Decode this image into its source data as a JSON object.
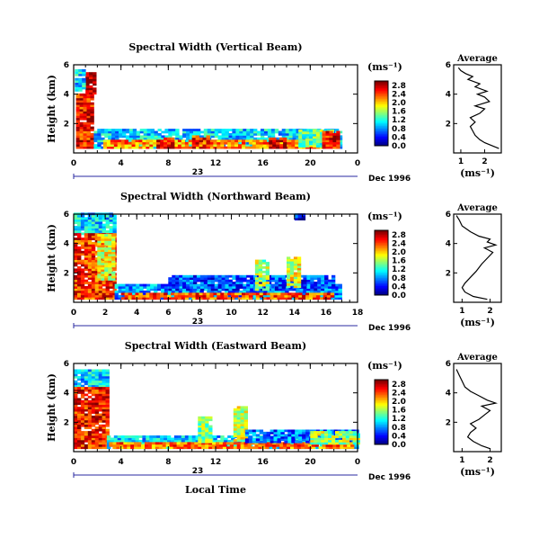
{
  "figure": {
    "bottom_label": "Local Time",
    "date_label": "Dec 1996",
    "day_label": "23"
  },
  "chart_data": [
    {
      "type": "heatmap",
      "title": "Spectral Width (Vertical Beam)",
      "xlabel": "",
      "ylabel": "Height (km)",
      "x_ticks": [
        "0",
        "4",
        "8",
        "12",
        "16",
        "20",
        "0"
      ],
      "x_range": [
        0,
        24
      ],
      "y_ticks": [
        "2",
        "4",
        "6"
      ],
      "y_range": [
        0,
        6
      ],
      "colorbar": {
        "unit": "(ms⁻¹)",
        "ticks": [
          "0.0",
          "0.4",
          "0.8",
          "1.2",
          "1.6",
          "2.0",
          "2.4",
          "2.8"
        ],
        "range": [
          0,
          3
        ]
      },
      "blobs": [
        {
          "x0": 0.2,
          "x1": 1.7,
          "y0": 0.3,
          "y1": 4.0,
          "v": 2.6
        },
        {
          "x0": 1.0,
          "x1": 1.7,
          "y0": 4.0,
          "y1": 5.5,
          "v": 2.9
        },
        {
          "x0": 0.1,
          "x1": 0.9,
          "y0": 4.2,
          "y1": 5.6,
          "v": 1.0
        },
        {
          "x0": 1.7,
          "x1": 22.5,
          "y0": 0.3,
          "y1": 1.6,
          "v": 1.0
        },
        {
          "x0": 2.5,
          "x1": 22.0,
          "y0": 0.3,
          "y1": 0.8,
          "v": 2.2
        },
        {
          "x0": 7.0,
          "x1": 8.5,
          "y0": 0.3,
          "y1": 1.0,
          "v": 2.7
        },
        {
          "x0": 10.0,
          "x1": 11.5,
          "y0": 0.3,
          "y1": 1.2,
          "v": 2.5
        },
        {
          "x0": 16.5,
          "x1": 18.0,
          "y0": 0.3,
          "y1": 1.0,
          "v": 2.8
        },
        {
          "x0": 19.0,
          "x1": 22.0,
          "y0": 0.4,
          "y1": 1.6,
          "v": 1.4
        },
        {
          "x0": 21.0,
          "x1": 22.5,
          "y0": 0.3,
          "y1": 1.5,
          "v": 2.6
        }
      ],
      "profile": {
        "title": "Average",
        "xlabel": "(ms⁻¹)",
        "x_ticks": [
          "1",
          "2"
        ],
        "x_range": [
          0.7,
          2.7
        ],
        "y_ticks": [
          "2",
          "4",
          "6"
        ],
        "y_range": [
          0,
          6
        ],
        "points": [
          [
            2.6,
            0.3
          ],
          [
            2.3,
            0.5
          ],
          [
            2.0,
            0.7
          ],
          [
            1.8,
            0.9
          ],
          [
            1.6,
            1.2
          ],
          [
            1.5,
            1.5
          ],
          [
            1.4,
            1.8
          ],
          [
            1.6,
            2.1
          ],
          [
            1.4,
            2.4
          ],
          [
            1.8,
            2.7
          ],
          [
            2.0,
            3.0
          ],
          [
            1.6,
            3.2
          ],
          [
            2.2,
            3.5
          ],
          [
            2.0,
            3.8
          ],
          [
            1.7,
            4.0
          ],
          [
            2.1,
            4.2
          ],
          [
            1.6,
            4.5
          ],
          [
            1.8,
            4.7
          ],
          [
            1.3,
            5.0
          ],
          [
            1.5,
            5.2
          ],
          [
            1.2,
            5.4
          ],
          [
            1.0,
            5.6
          ],
          [
            0.9,
            5.8
          ]
        ]
      }
    },
    {
      "type": "heatmap",
      "title": "Spectral Width (Northward Beam)",
      "xlabel": "",
      "ylabel": "Height (km)",
      "x_ticks": [
        "0",
        "2",
        "4",
        "6",
        "8",
        "10",
        "12",
        "14",
        "16",
        "18"
      ],
      "x_range": [
        0,
        18
      ],
      "y_ticks": [
        "2",
        "4",
        "6"
      ],
      "y_range": [
        0,
        6
      ],
      "colorbar": {
        "unit": "(ms⁻¹)",
        "ticks": [
          "0.0",
          "0.4",
          "0.8",
          "1.2",
          "1.6",
          "2.0",
          "2.4",
          "2.8"
        ],
        "range": [
          0,
          3
        ]
      },
      "blobs": [
        {
          "x0": 0.0,
          "x1": 2.6,
          "y0": 4.6,
          "y1": 6.0,
          "v": 1.0
        },
        {
          "x0": 0.0,
          "x1": 2.6,
          "y0": 0.2,
          "y1": 4.6,
          "v": 2.5
        },
        {
          "x0": 1.5,
          "x1": 2.6,
          "y0": 1.5,
          "y1": 4.6,
          "v": 1.8
        },
        {
          "x0": 2.6,
          "x1": 16.8,
          "y0": 0.2,
          "y1": 1.2,
          "v": 0.8
        },
        {
          "x0": 3.0,
          "x1": 16.5,
          "y0": 0.2,
          "y1": 0.6,
          "v": 2.4
        },
        {
          "x0": 6.0,
          "x1": 16.5,
          "y0": 0.8,
          "y1": 1.8,
          "v": 0.6
        },
        {
          "x0": 11.5,
          "x1": 12.2,
          "y0": 0.8,
          "y1": 2.8,
          "v": 1.6
        },
        {
          "x0": 13.5,
          "x1": 14.3,
          "y0": 1.0,
          "y1": 3.0,
          "v": 1.8
        },
        {
          "x0": 14.0,
          "x1": 14.5,
          "y0": 5.6,
          "y1": 6.0,
          "v": 0.4
        }
      ],
      "profile": {
        "title": "Average",
        "xlabel": "(ms⁻¹)",
        "x_ticks": [
          "1",
          "2"
        ],
        "x_range": [
          0.7,
          2.4
        ],
        "y_ticks": [
          "2",
          "4",
          "6"
        ],
        "y_range": [
          0,
          6
        ],
        "points": [
          [
            1.9,
            0.2
          ],
          [
            1.4,
            0.4
          ],
          [
            1.1,
            0.7
          ],
          [
            1.0,
            1.0
          ],
          [
            1.1,
            1.3
          ],
          [
            1.3,
            1.7
          ],
          [
            1.5,
            2.1
          ],
          [
            1.7,
            2.6
          ],
          [
            1.9,
            3.0
          ],
          [
            2.1,
            3.4
          ],
          [
            1.8,
            3.7
          ],
          [
            2.2,
            3.9
          ],
          [
            1.9,
            4.1
          ],
          [
            2.0,
            4.3
          ],
          [
            1.6,
            4.5
          ],
          [
            1.3,
            4.8
          ],
          [
            1.0,
            5.2
          ],
          [
            0.9,
            5.6
          ],
          [
            0.8,
            5.9
          ]
        ]
      }
    },
    {
      "type": "heatmap",
      "title": "Spectral Width (Eastward Beam)",
      "xlabel": "Local Time",
      "ylabel": "Height (km)",
      "x_ticks": [
        "0",
        "4",
        "8",
        "12",
        "16",
        "20",
        "0"
      ],
      "x_range": [
        0,
        24
      ],
      "y_ticks": [
        "2",
        "4",
        "6"
      ],
      "y_range": [
        0,
        6
      ],
      "colorbar": {
        "unit": "(ms⁻¹)",
        "ticks": [
          "0.0",
          "0.4",
          "0.8",
          "1.2",
          "1.6",
          "2.0",
          "2.4",
          "2.8"
        ],
        "range": [
          0,
          3
        ]
      },
      "blobs": [
        {
          "x0": 0.0,
          "x1": 3.0,
          "y0": 4.4,
          "y1": 5.6,
          "v": 1.0
        },
        {
          "x0": 0.0,
          "x1": 2.8,
          "y0": 0.2,
          "y1": 4.4,
          "v": 2.6
        },
        {
          "x0": 2.8,
          "x1": 24.0,
          "y0": 0.2,
          "y1": 1.0,
          "v": 1.0
        },
        {
          "x0": 3.0,
          "x1": 23.5,
          "y0": 0.2,
          "y1": 0.6,
          "v": 2.3
        },
        {
          "x0": 10.5,
          "x1": 11.5,
          "y0": 0.6,
          "y1": 2.4,
          "v": 1.5
        },
        {
          "x0": 13.5,
          "x1": 14.5,
          "y0": 0.7,
          "y1": 3.0,
          "v": 1.7
        },
        {
          "x0": 14.5,
          "x1": 24.0,
          "y0": 0.6,
          "y1": 1.4,
          "v": 0.7
        },
        {
          "x0": 20.0,
          "x1": 24.0,
          "y0": 0.5,
          "y1": 1.3,
          "v": 1.6
        }
      ],
      "profile": {
        "title": "Average",
        "xlabel": "(ms⁻¹)",
        "x_ticks": [
          "1",
          "2"
        ],
        "x_range": [
          0.7,
          2.4
        ],
        "y_ticks": [
          "2",
          "4",
          "6"
        ],
        "y_range": [
          0,
          6
        ],
        "points": [
          [
            2.0,
            0.2
          ],
          [
            1.7,
            0.4
          ],
          [
            1.4,
            0.7
          ],
          [
            1.2,
            1.0
          ],
          [
            1.3,
            1.3
          ],
          [
            1.5,
            1.6
          ],
          [
            1.3,
            1.9
          ],
          [
            1.6,
            2.2
          ],
          [
            1.8,
            2.5
          ],
          [
            2.0,
            2.8
          ],
          [
            1.7,
            3.1
          ],
          [
            2.2,
            3.3
          ],
          [
            1.9,
            3.5
          ],
          [
            1.6,
            3.8
          ],
          [
            1.3,
            4.1
          ],
          [
            1.1,
            4.4
          ],
          [
            1.0,
            4.8
          ],
          [
            0.9,
            5.2
          ],
          [
            0.8,
            5.6
          ]
        ]
      }
    }
  ]
}
